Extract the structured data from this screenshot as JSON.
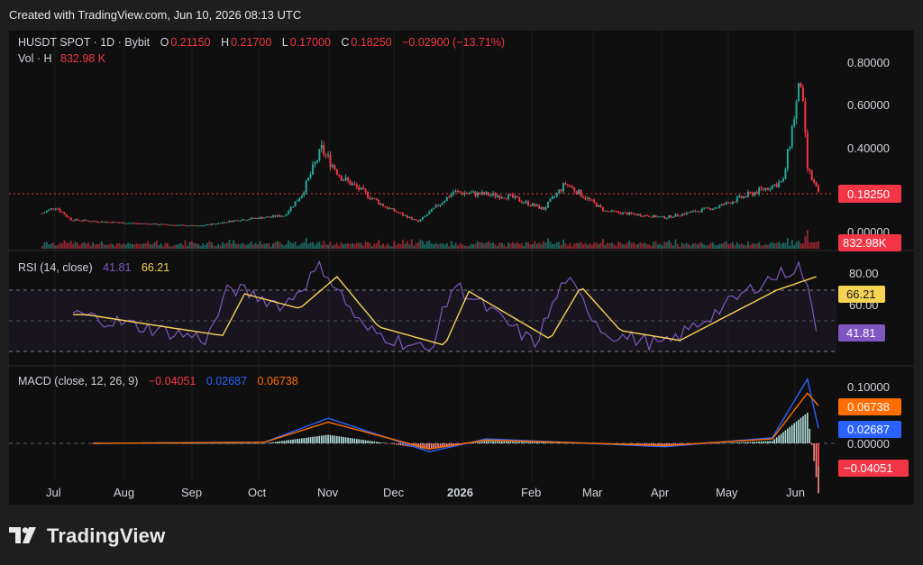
{
  "header": {
    "created": "Created with TradingView.com, Jun 10, 2026 08:13 UTC"
  },
  "legend": {
    "symbol": "HUSDT SPOT · 1D · Bybit",
    "o_label": "O",
    "o": "0.21150",
    "h_label": "H",
    "h": "0.21700",
    "l_label": "L",
    "l": "0.17000",
    "c_label": "C",
    "c": "0.18250",
    "change": "−0.02900 (−13.71%)",
    "vol_label": "Vol · H",
    "vol": "832.98 K"
  },
  "rsi_legend": {
    "label": "RSI (14, close)",
    "rsi": "41.81",
    "ma": "66.21"
  },
  "macd_legend": {
    "label": "MACD (close, 12, 26, 9)",
    "hist": "−0.04051",
    "macd": "0.02687",
    "signal": "0.06738"
  },
  "price_axis": {
    "ticks": [
      "0.80000",
      "0.60000",
      "0.40000",
      "0.00000"
    ],
    "last": "0.18250",
    "volume": "832.98K"
  },
  "rsi_axis": {
    "ticks": [
      "80.00",
      "60.00"
    ],
    "ma_value": "66.21",
    "rsi_value": "41.81"
  },
  "macd_axis": {
    "ticks": [
      "0.10000",
      "0.00000"
    ],
    "signal_value": "0.06738",
    "macd_value": "0.02687",
    "hist_value": "−0.04051"
  },
  "time_axis": {
    "labels": [
      "Jul",
      "Aug",
      "Sep",
      "Oct",
      "Nov",
      "Dec",
      "2026",
      "Feb",
      "Mar",
      "Apr",
      "May",
      "Jun"
    ]
  },
  "footer": {
    "brand": "TradingView"
  },
  "colors": {
    "up": "#26a69a",
    "down": "#f23645",
    "rsi": "#7e57c2",
    "rsi_ma": "#f7d354",
    "macd": "#2962ff",
    "signal": "#ff6d00"
  },
  "chart_data": {
    "type": "candlestick",
    "price_points": [
      {
        "date": "2025-06-22",
        "close": 0.09
      },
      {
        "date": "2025-06-28",
        "close": 0.12
      },
      {
        "date": "2025-07-05",
        "close": 0.06
      },
      {
        "date": "2025-07-20",
        "close": 0.05
      },
      {
        "date": "2025-08-10",
        "close": 0.04
      },
      {
        "date": "2025-09-01",
        "close": 0.03
      },
      {
        "date": "2025-09-20",
        "close": 0.06
      },
      {
        "date": "2025-10-10",
        "close": 0.08
      },
      {
        "date": "2025-10-18",
        "close": 0.18
      },
      {
        "date": "2025-10-27",
        "close": 0.39
      },
      {
        "date": "2025-11-05",
        "close": 0.26
      },
      {
        "date": "2025-11-25",
        "close": 0.12
      },
      {
        "date": "2025-12-10",
        "close": 0.05
      },
      {
        "date": "2025-12-26",
        "close": 0.19
      },
      {
        "date": "2026-01-20",
        "close": 0.17
      },
      {
        "date": "2026-02-05",
        "close": 0.11
      },
      {
        "date": "2026-02-15",
        "close": 0.23
      },
      {
        "date": "2026-03-05",
        "close": 0.1
      },
      {
        "date": "2026-04-01",
        "close": 0.07
      },
      {
        "date": "2026-04-25",
        "close": 0.12
      },
      {
        "date": "2026-05-15",
        "close": 0.2
      },
      {
        "date": "2026-05-25",
        "close": 0.24
      },
      {
        "date": "2026-05-30",
        "close": 0.55
      },
      {
        "date": "2026-06-02",
        "close": 0.71
      },
      {
        "date": "2026-06-05",
        "close": 0.3
      },
      {
        "date": "2026-06-10",
        "close": 0.18
      }
    ],
    "price_ylim": [
      0.0,
      0.85
    ],
    "rsi_points": [
      {
        "date": "2025-07-05",
        "value": 55
      },
      {
        "date": "2025-08-10",
        "value": 45
      },
      {
        "date": "2025-09-05",
        "value": 38
      },
      {
        "date": "2025-09-15",
        "value": 72
      },
      {
        "date": "2025-10-10",
        "value": 60
      },
      {
        "date": "2025-10-27",
        "value": 86
      },
      {
        "date": "2025-11-15",
        "value": 45
      },
      {
        "date": "2025-12-15",
        "value": 30
      },
      {
        "date": "2025-12-26",
        "value": 74
      },
      {
        "date": "2026-02-01",
        "value": 35
      },
      {
        "date": "2026-02-15",
        "value": 78
      },
      {
        "date": "2026-03-05",
        "value": 42
      },
      {
        "date": "2026-04-01",
        "value": 34
      },
      {
        "date": "2026-05-15",
        "value": 75
      },
      {
        "date": "2026-06-02",
        "value": 86
      },
      {
        "date": "2026-06-10",
        "value": 41.81
      }
    ],
    "rsi_ma_value": 66.21,
    "rsi_levels": [
      70,
      50,
      30
    ],
    "macd_points": [
      {
        "date": "2025-07-15",
        "macd": 0.0,
        "signal": 0.0
      },
      {
        "date": "2025-10-01",
        "macd": 0.002,
        "signal": 0.002
      },
      {
        "date": "2025-10-30",
        "macd": 0.045,
        "signal": 0.038
      },
      {
        "date": "2025-12-15",
        "macd": -0.015,
        "signal": -0.01
      },
      {
        "date": "2026-01-10",
        "macd": 0.008,
        "signal": 0.006
      },
      {
        "date": "2026-04-01",
        "macd": -0.006,
        "signal": -0.004
      },
      {
        "date": "2026-05-20",
        "macd": 0.01,
        "signal": 0.008
      },
      {
        "date": "2026-06-05",
        "macd": 0.115,
        "signal": 0.09
      },
      {
        "date": "2026-06-10",
        "macd": 0.02687,
        "signal": 0.06738
      }
    ],
    "macd_hist_last": -0.04051
  }
}
